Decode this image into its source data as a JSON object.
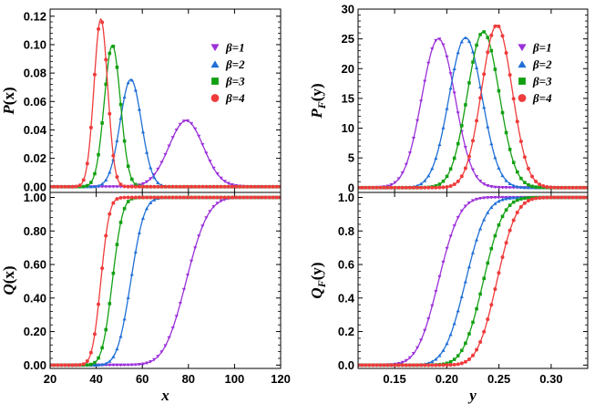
{
  "legend": [
    {
      "label": "β=1",
      "color": "#9b30d9",
      "marker": "triangle-down"
    },
    {
      "label": "β=2",
      "color": "#1f6fd6",
      "marker": "triangle-up"
    },
    {
      "label": "β=3",
      "color": "#12a012",
      "marker": "square"
    },
    {
      "label": "β=4",
      "color": "#ef3b3b",
      "marker": "circle"
    }
  ],
  "chart_data": [
    {
      "type": "line",
      "panel": "top-left",
      "ylabel": "P(x)",
      "xlabel": "",
      "xlim": [
        20,
        120
      ],
      "ylim": [
        -0.004,
        0.125
      ],
      "yticks": [
        "0.00",
        "0.02",
        "0.04",
        "0.06",
        "0.08",
        "0.10",
        "0.12"
      ],
      "legend_position": "top-right",
      "series": [
        {
          "name": "β=1",
          "shape": "gaussian",
          "peak_x": 79,
          "peak_y": 0.0465,
          "width": 7.5
        },
        {
          "name": "β=2",
          "shape": "gaussian",
          "peak_x": 55,
          "peak_y": 0.0755,
          "width": 4.6
        },
        {
          "name": "β=3",
          "shape": "gaussian",
          "peak_x": 47,
          "peak_y": 0.0995,
          "width": 3.5
        },
        {
          "name": "β=4",
          "shape": "gaussian",
          "peak_x": 42,
          "peak_y": 0.118,
          "width": 2.95
        }
      ]
    },
    {
      "type": "line",
      "panel": "bottom-left",
      "ylabel": "Q(x)",
      "xlabel": "x",
      "xlim": [
        20,
        120
      ],
      "ylim": [
        -0.02,
        1.03
      ],
      "xticks": [
        "20",
        "40",
        "60",
        "80",
        "100",
        "120"
      ],
      "yticks": [
        "0.00",
        "0.20",
        "0.40",
        "0.60",
        "0.80",
        "1.00"
      ],
      "series": [
        {
          "name": "β=1",
          "shape": "cdf",
          "mid_x": 79,
          "width": 7.5
        },
        {
          "name": "β=2",
          "shape": "cdf",
          "mid_x": 55,
          "width": 4.6
        },
        {
          "name": "β=3",
          "shape": "cdf",
          "mid_x": 47,
          "width": 3.5
        },
        {
          "name": "β=4",
          "shape": "cdf",
          "mid_x": 42,
          "width": 2.95
        }
      ]
    },
    {
      "type": "line",
      "panel": "top-right",
      "ylabel": "P_F(y)",
      "xlabel": "",
      "xlim": [
        0.115,
        0.335
      ],
      "ylim": [
        -0.8,
        30
      ],
      "yticks": [
        "0",
        "5",
        "10",
        "15",
        "20",
        "25",
        "30"
      ],
      "legend_position": "top-right",
      "series": [
        {
          "name": "β=1",
          "shape": "gaussian",
          "peak_x": 0.192,
          "peak_y": 25,
          "width": 0.016
        },
        {
          "name": "β=2",
          "shape": "gaussian",
          "peak_x": 0.218,
          "peak_y": 25.2,
          "width": 0.0158
        },
        {
          "name": "β=3",
          "shape": "gaussian",
          "peak_x": 0.235,
          "peak_y": 26.2,
          "width": 0.0152
        },
        {
          "name": "β=4",
          "shape": "gaussian",
          "peak_x": 0.248,
          "peak_y": 27.3,
          "width": 0.0146
        }
      ]
    },
    {
      "type": "line",
      "panel": "bottom-right",
      "ylabel": "Q_F(y)",
      "xlabel": "y",
      "xlim": [
        0.115,
        0.335
      ],
      "ylim": [
        -0.02,
        1.03
      ],
      "xticks": [
        "0.15",
        "0.20",
        "0.25",
        "0.30"
      ],
      "yticks": [
        "0.0",
        "0.2",
        "0.4",
        "0.6",
        "0.8",
        "1.0"
      ],
      "series": [
        {
          "name": "β=1",
          "shape": "cdf",
          "mid_x": 0.192,
          "width": 0.016
        },
        {
          "name": "β=2",
          "shape": "cdf",
          "mid_x": 0.218,
          "width": 0.0158
        },
        {
          "name": "β=3",
          "shape": "cdf",
          "mid_x": 0.235,
          "width": 0.0152
        },
        {
          "name": "β=4",
          "shape": "cdf",
          "mid_x": 0.248,
          "width": 0.0146
        }
      ]
    }
  ]
}
